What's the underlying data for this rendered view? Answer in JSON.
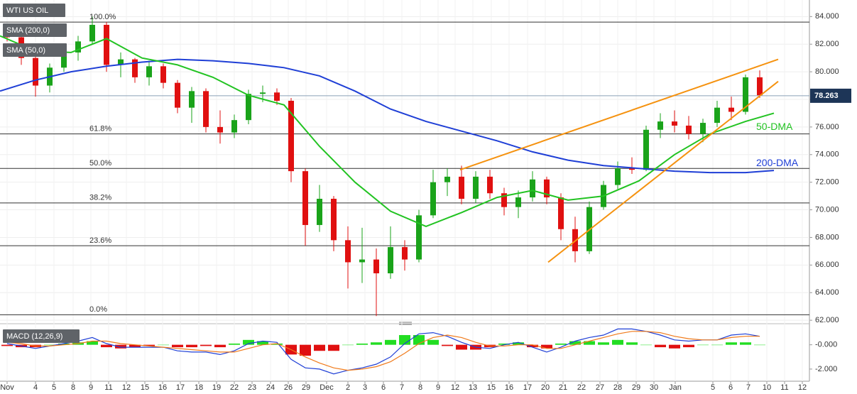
{
  "chart_data": [
    {
      "type": "candlestick",
      "title": "WTI US OIL",
      "legend": [
        "SMA (200,0)",
        "SMA (50,0)"
      ],
      "xlim": [
        0,
        114
      ],
      "ylim": [
        61.8,
        85.2
      ],
      "xticks": [
        {
          "value": 1,
          "label": "Nov"
        },
        {
          "value": 5,
          "label": "4"
        },
        {
          "value": 7.6,
          "label": "5"
        },
        {
          "value": 10.3,
          "label": "8"
        },
        {
          "value": 12.8,
          "label": "9"
        },
        {
          "value": 15.3,
          "label": "11"
        },
        {
          "value": 17.8,
          "label": "12"
        },
        {
          "value": 20.4,
          "label": "15"
        },
        {
          "value": 22.9,
          "label": "16"
        },
        {
          "value": 25.4,
          "label": "17"
        },
        {
          "value": 28,
          "label": "18"
        },
        {
          "value": 30.5,
          "label": "19"
        },
        {
          "value": 33,
          "label": "22"
        },
        {
          "value": 35.5,
          "label": "23"
        },
        {
          "value": 38.1,
          "label": "24"
        },
        {
          "value": 40.6,
          "label": "26"
        },
        {
          "value": 43.1,
          "label": "29"
        },
        {
          "value": 46,
          "label": "Dec"
        },
        {
          "value": 49,
          "label": "2"
        },
        {
          "value": 51.4,
          "label": "3"
        },
        {
          "value": 54,
          "label": "6"
        },
        {
          "value": 56.6,
          "label": "7"
        },
        {
          "value": 59.2,
          "label": "8"
        },
        {
          "value": 61.7,
          "label": "9"
        },
        {
          "value": 64.1,
          "label": "12"
        },
        {
          "value": 66.6,
          "label": "13"
        },
        {
          "value": 69.2,
          "label": "15"
        },
        {
          "value": 71.7,
          "label": "16"
        },
        {
          "value": 74.3,
          "label": "17"
        },
        {
          "value": 76.8,
          "label": "20"
        },
        {
          "value": 79.3,
          "label": "21"
        },
        {
          "value": 81.9,
          "label": "22"
        },
        {
          "value": 84.5,
          "label": "27"
        },
        {
          "value": 87,
          "label": "28"
        },
        {
          "value": 89.6,
          "label": "29"
        },
        {
          "value": 92.1,
          "label": "30"
        },
        {
          "value": 95.1,
          "label": "Jan"
        },
        {
          "value": 100.4,
          "label": "5"
        },
        {
          "value": 102.9,
          "label": "6"
        },
        {
          "value": 105.4,
          "label": "7"
        },
        {
          "value": 108,
          "label": "10"
        },
        {
          "value": 110.5,
          "label": "11"
        },
        {
          "value": 113,
          "label": "12"
        }
      ],
      "yticks": [
        {
          "value": 62,
          "label": "62.000"
        },
        {
          "value": 64,
          "label": "64.000"
        },
        {
          "value": 66,
          "label": "66.000"
        },
        {
          "value": 68,
          "label": "68.000"
        },
        {
          "value": 70,
          "label": "70.000"
        },
        {
          "value": 72,
          "label": "72.000"
        },
        {
          "value": 74,
          "label": "74.000"
        },
        {
          "value": 76,
          "label": "76.000"
        },
        {
          "value": 78,
          "label": "78.000"
        },
        {
          "value": 80,
          "label": "80.000"
        },
        {
          "value": 82,
          "label": "82.000"
        },
        {
          "value": 84,
          "label": "84.000"
        }
      ],
      "up_color": "#1aa31a",
      "down_color": "#e01010",
      "candles": {
        "x": [
          1,
          3,
          5,
          7,
          9,
          11,
          13,
          15,
          17,
          19,
          21,
          23,
          25,
          27,
          29,
          31,
          33,
          35,
          37,
          39,
          41,
          43,
          45,
          47,
          49,
          51,
          53,
          55,
          57,
          59,
          61,
          63,
          65,
          67,
          69,
          71,
          73,
          75,
          77,
          79,
          81,
          83,
          85,
          87,
          89,
          91,
          93,
          95,
          97,
          99,
          101,
          103,
          105,
          107
        ],
        "open": [
          83.0,
          82.5,
          81.0,
          79.0,
          80.3,
          81.4,
          82.2,
          83.4,
          80.5,
          80.9,
          79.6,
          80.4,
          79.2,
          77.4,
          78.6,
          76.0,
          75.6,
          76.5,
          78.4,
          78.5,
          77.9,
          72.8,
          68.9,
          70.8,
          67.8,
          66.2,
          66.4,
          65.4,
          67.3,
          66.4,
          69.6,
          72.0,
          72.4,
          70.8,
          72.4,
          71.2,
          70.2,
          70.9,
          72.2,
          70.9,
          68.6,
          67.0,
          70.2,
          71.8,
          73.0,
          72.9,
          75.8,
          76.4,
          76.1,
          75.5,
          76.3,
          77.4,
          77.1,
          79.6
        ],
        "high": [
          83.5,
          82.8,
          81.6,
          80.6,
          81.8,
          82.6,
          84.0,
          83.6,
          81.4,
          81.0,
          80.8,
          80.6,
          79.4,
          78.9,
          78.8,
          77.2,
          76.9,
          78.7,
          79.0,
          78.8,
          78.1,
          73.0,
          71.8,
          71.0,
          68.8,
          68.7,
          67.2,
          68.8,
          67.8,
          70.0,
          72.9,
          73.0,
          73.2,
          72.8,
          72.9,
          71.6,
          71.4,
          72.8,
          72.4,
          71.2,
          69.5,
          70.6,
          72.1,
          73.5,
          73.8,
          76.1,
          77.0,
          77.2,
          76.8,
          76.6,
          77.9,
          78.2,
          79.8,
          80.1
        ],
        "low": [
          82.2,
          80.5,
          78.2,
          78.5,
          80.0,
          80.8,
          82.0,
          80.0,
          79.6,
          79.2,
          79.0,
          78.8,
          77.0,
          76.3,
          75.6,
          74.8,
          75.2,
          76.2,
          77.8,
          77.6,
          72.0,
          67.4,
          68.4,
          67.0,
          64.3,
          64.7,
          62.3,
          65.0,
          65.6,
          66.2,
          69.4,
          71.0,
          70.4,
          70.5,
          70.8,
          69.6,
          69.4,
          70.6,
          70.4,
          67.8,
          66.2,
          66.8,
          70.0,
          71.5,
          72.6,
          72.8,
          75.2,
          75.6,
          75.1,
          74.9,
          76.0,
          76.5,
          76.9,
          78.1
        ],
        "close": [
          82.5,
          81.0,
          79.0,
          80.3,
          81.4,
          82.2,
          83.4,
          80.5,
          80.9,
          79.6,
          80.4,
          79.2,
          77.4,
          78.6,
          76.0,
          75.6,
          76.5,
          78.4,
          78.5,
          77.9,
          72.8,
          68.9,
          70.8,
          67.8,
          66.2,
          66.4,
          65.4,
          67.3,
          66.4,
          69.6,
          72.0,
          72.4,
          70.8,
          72.4,
          71.2,
          70.2,
          70.9,
          72.2,
          70.9,
          68.6,
          67.0,
          70.2,
          71.8,
          73.0,
          72.9,
          75.8,
          76.4,
          76.1,
          75.5,
          76.3,
          77.4,
          77.1,
          79.6,
          78.3
        ]
      },
      "series": [
        {
          "name": "SMA (200,0)",
          "label": "200-DMA",
          "color": "#1f3fd6",
          "x": [
            0,
            5,
            10,
            15,
            20,
            25,
            30,
            35,
            40,
            45,
            50,
            55,
            60,
            65,
            70,
            75,
            80,
            85,
            90,
            95,
            100,
            105,
            109
          ],
          "values": [
            78.6,
            79.4,
            80.0,
            80.4,
            80.7,
            80.9,
            80.8,
            80.6,
            80.3,
            79.7,
            78.6,
            77.3,
            76.4,
            75.7,
            75.0,
            74.2,
            73.6,
            73.2,
            73.0,
            72.8,
            72.7,
            72.7,
            72.85
          ]
        },
        {
          "name": "SMA (50,0)",
          "label": "50-DMA",
          "color": "#22c322",
          "x": [
            0,
            5,
            10,
            15,
            20,
            25,
            30,
            35,
            40,
            45,
            50,
            55,
            60,
            65,
            70,
            75,
            80,
            85,
            90,
            95,
            100,
            105,
            109
          ],
          "values": [
            82.6,
            81.5,
            81.4,
            82.4,
            81.0,
            80.5,
            79.6,
            78.3,
            77.6,
            74.6,
            72.0,
            69.9,
            68.8,
            69.8,
            70.9,
            71.4,
            70.7,
            71.0,
            72.1,
            74.0,
            75.5,
            76.4,
            77.0
          ]
        }
      ],
      "levels": [
        {
          "label": "100.0%",
          "value": 83.6
        },
        {
          "label": "61.8%",
          "value": 75.5
        },
        {
          "label": "50.0%",
          "value": 73.0
        },
        {
          "label": "38.2%",
          "value": 70.5
        },
        {
          "label": "23.6%",
          "value": 67.4
        },
        {
          "label": "0.0%",
          "value": 62.4
        }
      ],
      "trendlines": [
        {
          "color": "#f5920f",
          "x": [
            64.8,
            109.6
          ],
          "values": [
            72.9,
            80.9
          ]
        },
        {
          "color": "#f5920f",
          "x": [
            77.2,
            109.6
          ],
          "values": [
            66.2,
            79.3
          ]
        }
      ],
      "last_price": {
        "value": 78.263,
        "label": "78.263"
      }
    },
    {
      "type": "macd",
      "title": "MACD (12,26,9)",
      "xlim": [
        0,
        114
      ],
      "ylim": [
        -3.0,
        1.5
      ],
      "yticks": [
        {
          "value": 0,
          "label": "-0.000"
        },
        {
          "value": -2,
          "label": "-2.000"
        }
      ],
      "x": [
        1,
        3,
        5,
        7,
        9,
        11,
        13,
        15,
        17,
        19,
        21,
        23,
        25,
        27,
        29,
        31,
        33,
        35,
        37,
        39,
        41,
        43,
        45,
        47,
        49,
        51,
        53,
        55,
        57,
        59,
        61,
        63,
        65,
        67,
        69,
        71,
        73,
        75,
        77,
        79,
        81,
        83,
        85,
        87,
        89,
        91,
        93,
        95,
        97,
        99,
        101,
        103,
        105,
        107
      ],
      "series": [
        {
          "name": "MACD",
          "color": "#1f3fd6",
          "values": [
            0.1,
            -0.1,
            -0.3,
            -0.1,
            0.1,
            0.3,
            0.6,
            0.1,
            -0.2,
            -0.2,
            -0.2,
            -0.2,
            -0.5,
            -0.6,
            -0.6,
            -0.8,
            -0.5,
            0.1,
            0.3,
            0.2,
            -1.2,
            -1.9,
            -2.0,
            -2.4,
            -2.1,
            -1.9,
            -1.6,
            -1.0,
            0.1,
            0.9,
            1.0,
            0.7,
            0.2,
            -0.2,
            -0.3,
            0.0,
            0.2,
            -0.2,
            -0.6,
            -0.2,
            0.3,
            0.6,
            0.8,
            1.3,
            1.3,
            1.1,
            0.8,
            0.4,
            0.3,
            0.4,
            0.4,
            0.8,
            0.9,
            0.7
          ]
        },
        {
          "name": "Signal",
          "color": "#f07a1a",
          "values": [
            0.2,
            0.1,
            -0.1,
            -0.1,
            0.0,
            0.1,
            0.3,
            0.3,
            0.1,
            0.0,
            -0.1,
            -0.2,
            -0.3,
            -0.4,
            -0.5,
            -0.6,
            -0.6,
            -0.3,
            0.0,
            0.1,
            -0.4,
            -1.0,
            -1.5,
            -1.9,
            -2.1,
            -2.0,
            -1.8,
            -1.4,
            -0.7,
            0.1,
            0.6,
            0.8,
            0.6,
            0.2,
            -0.1,
            -0.1,
            0.0,
            0.0,
            -0.3,
            -0.3,
            0.0,
            0.3,
            0.6,
            0.9,
            1.1,
            1.1,
            1.0,
            0.7,
            0.5,
            0.4,
            0.4,
            0.6,
            0.7,
            0.7
          ]
        }
      ],
      "histogram": {
        "up_color": "#22dd22",
        "down_color": "#e01010",
        "values": [
          -0.1,
          -0.2,
          -0.2,
          0.0,
          0.1,
          0.2,
          0.3,
          -0.2,
          -0.3,
          -0.2,
          -0.1,
          0.0,
          -0.2,
          -0.2,
          -0.1,
          -0.2,
          0.1,
          0.4,
          0.3,
          0.1,
          -0.8,
          -0.9,
          -0.5,
          -0.5,
          0.0,
          0.1,
          0.2,
          0.4,
          0.8,
          0.8,
          0.4,
          -0.1,
          -0.4,
          -0.4,
          -0.2,
          0.1,
          0.2,
          -0.2,
          -0.3,
          0.1,
          0.3,
          0.3,
          0.2,
          0.4,
          0.2,
          0.0,
          -0.2,
          -0.3,
          -0.2,
          0.0,
          0.0,
          0.2,
          0.2,
          0.0
        ]
      }
    }
  ]
}
